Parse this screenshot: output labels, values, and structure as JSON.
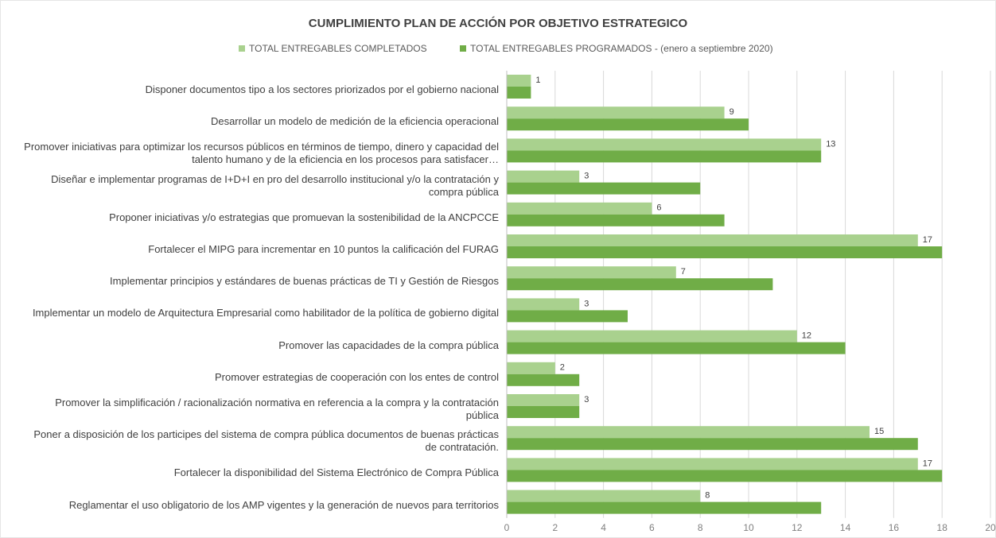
{
  "chart_data": {
    "type": "hbar",
    "title": "CUMPLIMIENTO PLAN DE ACCIÓN POR OBJETIVO ESTRATEGICO",
    "categories": [
      "Disponer documentos tipo a los sectores priorizados por el gobierno nacional",
      "Desarrollar un modelo de medición de la eficiencia operacional",
      "Promover iniciativas para optimizar los recursos públicos en términos de tiempo, dinero y capacidad del talento humano y de la eficiencia en los procesos para satisfacer…",
      "Diseñar e implementar programas de I+D+I en pro del desarrollo institucional y/o la contratación y compra pública",
      "Proponer iniciativas y/o estrategias que promuevan la sostenibilidad de la ANCPCCE",
      "Fortalecer el MIPG para incrementar en 10 puntos la calificación del FURAG",
      "Implementar principios y estándares de buenas prácticas de TI y Gestión de Riesgos",
      "Implementar un modelo de Arquitectura Empresarial como habilitador de la política de gobierno digital",
      "Promover las capacidades de la compra pública",
      "Promover estrategias de cooperación con los entes de control",
      "Promover la simplificación / racionalización normativa en referencia a la compra y la contratación pública",
      "Poner a disposición de los participes del sistema de compra pública documentos de buenas prácticas de contratación.",
      "Fortalecer la disponibilidad del Sistema Electrónico de Compra Pública",
      "Reglamentar el uso obligatorio de los AMP vigentes y la generación de nuevos para territorios"
    ],
    "series": [
      {
        "name": "TOTAL ENTREGABLES COMPLETADOS",
        "color": "#a9d18e",
        "show_labels": true,
        "values": [
          1,
          9,
          13,
          3,
          6,
          17,
          7,
          3,
          12,
          2,
          3,
          15,
          17,
          8
        ]
      },
      {
        "name": "TOTAL ENTREGABLES  PROGRAMADOS - (enero a septiembre 2020)",
        "color": "#70ad47",
        "show_labels": false,
        "values": [
          1,
          10,
          13,
          8,
          9,
          18,
          11,
          5,
          14,
          3,
          3,
          17,
          18,
          13
        ]
      }
    ],
    "xlim": [
      0,
      20
    ],
    "xticks": [
      0,
      2,
      4,
      6,
      8,
      10,
      12,
      14,
      16,
      18,
      20
    ],
    "grid": true,
    "legend": "top"
  }
}
